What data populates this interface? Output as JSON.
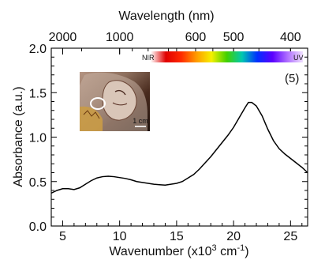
{
  "chart_data": {
    "type": "line",
    "xlabel": "Wavenumber (x10",
    "xlabel_sup_3": "3",
    "xlabel_mid": " cm",
    "xlabel_sup_minus1": "-1",
    "xlabel_end": ")",
    "ylabel": "Absorbance (a.u.)",
    "top_axis_label": "Wavelength (nm)",
    "xlim": [
      4,
      26.5
    ],
    "ylim": [
      0,
      2.0
    ],
    "x_ticks": [
      5,
      10,
      15,
      20,
      25
    ],
    "x_tick_labels": [
      "5",
      "10",
      "15",
      "20",
      "25"
    ],
    "y_ticks": [
      0.0,
      0.5,
      1.0,
      1.5,
      2.0
    ],
    "y_tick_labels": [
      "0.0",
      "0.5",
      "1.0",
      "1.5",
      "2.0"
    ],
    "top_ticks": [
      {
        "label": "2000",
        "nm": 2000
      },
      {
        "label": "1000",
        "nm": 1000
      },
      {
        "label": "600",
        "nm": 600
      },
      {
        "label": "500",
        "nm": 500
      },
      {
        "label": "400",
        "nm": 400
      }
    ],
    "spectrum_bar": {
      "left_label": "NIR",
      "right_label": "UV",
      "colors": [
        "#ffffff",
        "#e00000",
        "#ff2a00",
        "#ff9a00",
        "#f5f000",
        "#42d000",
        "#00c8b0",
        "#0030ff",
        "#5a00ff",
        "#b070ff",
        "#f0e0ff"
      ]
    },
    "panel_label": "(5)",
    "inset": {
      "scale_label": "1 cm"
    },
    "series": [
      {
        "color": "#000000",
        "points": [
          [
            4.0,
            0.37
          ],
          [
            4.5,
            0.4
          ],
          [
            5.0,
            0.42
          ],
          [
            5.5,
            0.42
          ],
          [
            6.0,
            0.41
          ],
          [
            6.5,
            0.43
          ],
          [
            7.0,
            0.47
          ],
          [
            7.5,
            0.51
          ],
          [
            8.0,
            0.54
          ],
          [
            8.5,
            0.555
          ],
          [
            9.0,
            0.56
          ],
          [
            9.5,
            0.555
          ],
          [
            10.0,
            0.545
          ],
          [
            10.5,
            0.535
          ],
          [
            11.0,
            0.52
          ],
          [
            11.5,
            0.5
          ],
          [
            12.0,
            0.49
          ],
          [
            12.5,
            0.48
          ],
          [
            13.0,
            0.47
          ],
          [
            13.5,
            0.465
          ],
          [
            14.0,
            0.46
          ],
          [
            14.5,
            0.47
          ],
          [
            15.0,
            0.48
          ],
          [
            15.5,
            0.5
          ],
          [
            16.0,
            0.54
          ],
          [
            16.5,
            0.58
          ],
          [
            17.0,
            0.64
          ],
          [
            17.5,
            0.71
          ],
          [
            18.0,
            0.78
          ],
          [
            18.5,
            0.86
          ],
          [
            19.0,
            0.94
          ],
          [
            19.5,
            1.02
          ],
          [
            20.0,
            1.11
          ],
          [
            20.5,
            1.22
          ],
          [
            21.0,
            1.33
          ],
          [
            21.3,
            1.39
          ],
          [
            21.6,
            1.39
          ],
          [
            22.0,
            1.35
          ],
          [
            22.5,
            1.24
          ],
          [
            23.0,
            1.09
          ],
          [
            23.5,
            0.96
          ],
          [
            24.0,
            0.87
          ],
          [
            24.5,
            0.81
          ],
          [
            25.0,
            0.76
          ],
          [
            25.5,
            0.71
          ],
          [
            26.0,
            0.66
          ],
          [
            26.5,
            0.6
          ]
        ]
      }
    ]
  }
}
